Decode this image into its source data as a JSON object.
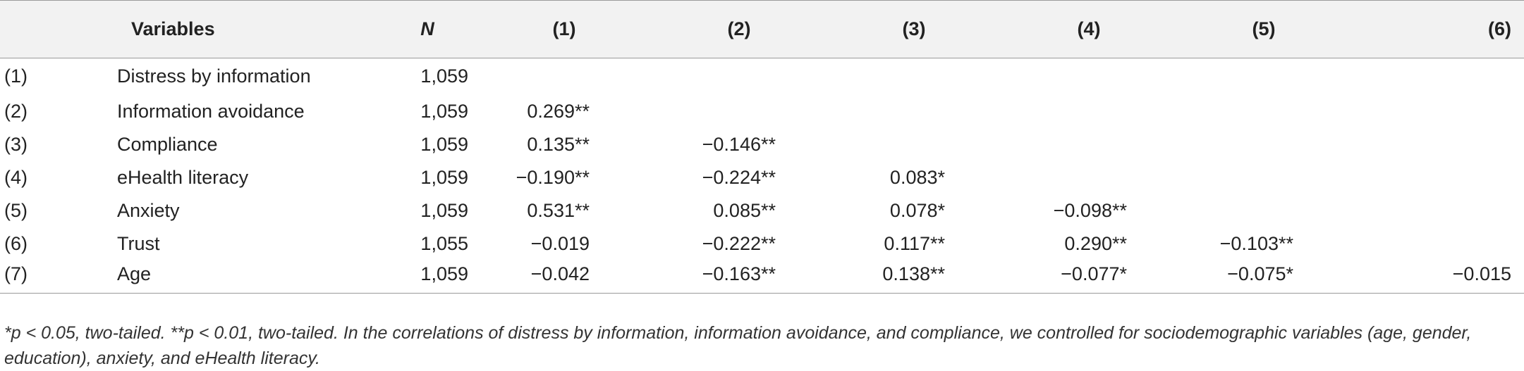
{
  "table": {
    "headers": {
      "idx": "",
      "variables": "Variables",
      "n": "N",
      "c1": "(1)",
      "c2": "(2)",
      "c3": "(3)",
      "c4": "(4)",
      "c5": "(5)",
      "c6": "(6)"
    },
    "rows": [
      {
        "idx": "(1)",
        "variable": "Distress by information",
        "n": "1,059",
        "c1": "",
        "c2": "",
        "c3": "",
        "c4": "",
        "c5": "",
        "c6": ""
      },
      {
        "idx": "(2)",
        "variable": "Information avoidance",
        "n": "1,059",
        "c1": "0.269**",
        "c2": "",
        "c3": "",
        "c4": "",
        "c5": "",
        "c6": ""
      },
      {
        "idx": "(3)",
        "variable": "Compliance",
        "n": "1,059",
        "c1": "0.135**",
        "c2": "−0.146**",
        "c3": "",
        "c4": "",
        "c5": "",
        "c6": ""
      },
      {
        "idx": "(4)",
        "variable": "eHealth literacy",
        "n": "1,059",
        "c1": "−0.190**",
        "c2": "−0.224**",
        "c3": "0.083*",
        "c4": "",
        "c5": "",
        "c6": ""
      },
      {
        "idx": "(5)",
        "variable": "Anxiety",
        "n": "1,059",
        "c1": "0.531**",
        "c2": "0.085**",
        "c3": "0.078*",
        "c4": "−0.098**",
        "c5": "",
        "c6": ""
      },
      {
        "idx": "(6)",
        "variable": "Trust",
        "n": "1,055",
        "c1": "−0.019",
        "c2": "−0.222**",
        "c3": "0.117**",
        "c4": "0.290**",
        "c5": "−0.103**",
        "c6": ""
      },
      {
        "idx": "(7)",
        "variable": "Age",
        "n": "1,059",
        "c1": "−0.042",
        "c2": "−0.163**",
        "c3": "0.138**",
        "c4": "−0.077*",
        "c5": "−0.075*",
        "c6": "−0.015"
      }
    ]
  },
  "footnote": "*p < 0.05, two-tailed. **p < 0.01, two-tailed. In the correlations of distress by information, information avoidance, and compliance, we controlled for sociodemographic variables (age, gender, education), anxiety, and eHealth literacy."
}
